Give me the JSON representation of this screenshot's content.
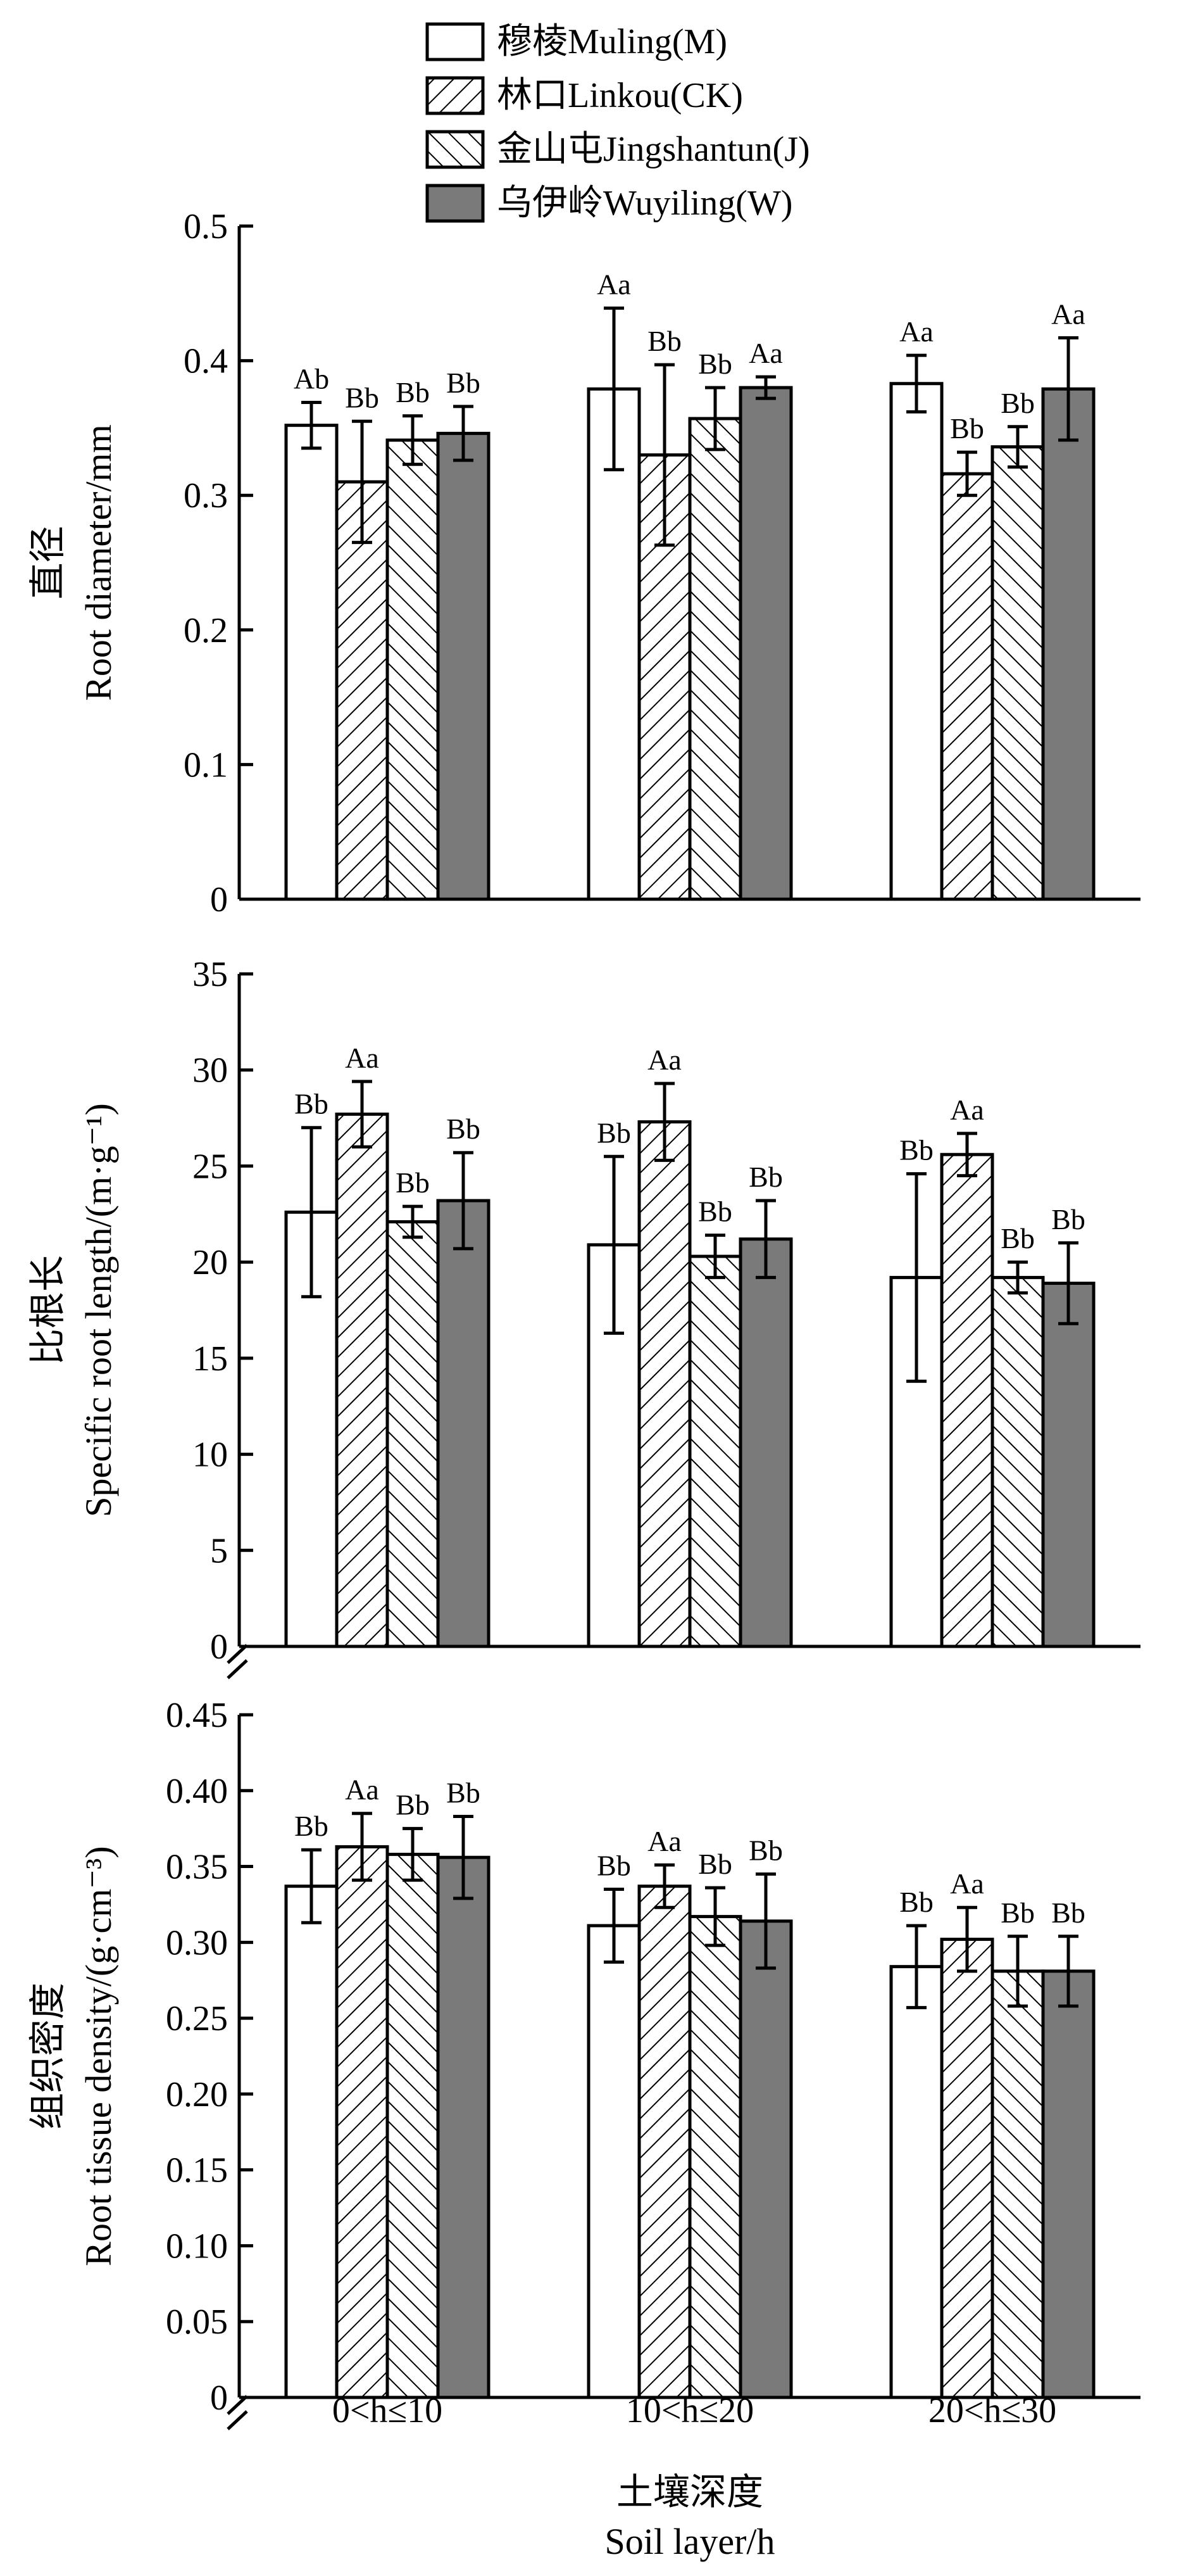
{
  "legend": {
    "position": "top-center",
    "entries": [
      {
        "label": "穆棱Muling(M)",
        "fill": "white"
      },
      {
        "label": "林口Linkou(CK)",
        "fill": "hatch-fwd"
      },
      {
        "label": "金山屯Jingshantun(J)",
        "fill": "hatch-back"
      },
      {
        "label": "乌伊岭Wuyiling(W)",
        "fill": "gray"
      }
    ]
  },
  "colors": {
    "bar_dark": "#7a7a7a",
    "stroke": "#000000",
    "background": "#ffffff"
  },
  "x_axis": {
    "tick_labels": [
      "0<h≤10",
      "10<h≤20",
      "20<h≤30"
    ],
    "label_cn": "土壤深度",
    "label_en": "Soil layer/h"
  },
  "chart_data": [
    {
      "type": "bar",
      "panel": "top",
      "ylabel_cn": "直径",
      "ylabel_en": "Root diameter/mm",
      "ylim": [
        0,
        0.5
      ],
      "yticks": [
        0,
        0.1,
        0.2,
        0.3,
        0.4,
        0.5
      ],
      "ytick_labels": [
        "0",
        "0.1",
        "0.2",
        "0.3",
        "0.4",
        "0.5"
      ],
      "axis_break_below": false,
      "categories": [
        "0<h≤10",
        "10<h≤20",
        "20<h≤30"
      ],
      "series": [
        {
          "name": "穆棱Muling(M)",
          "values": [
            0.352,
            0.379,
            0.383
          ],
          "errors": [
            0.017,
            0.06,
            0.021
          ],
          "labels": [
            "Ab",
            "Aa",
            "Aa"
          ]
        },
        {
          "name": "林口Linkou(CK)",
          "values": [
            0.31,
            0.33,
            0.316
          ],
          "errors": [
            0.045,
            0.067,
            0.016
          ],
          "labels": [
            "Bb",
            "Bb",
            "Bb"
          ]
        },
        {
          "name": "金山屯Jingshantun(J)",
          "values": [
            0.341,
            0.357,
            0.336
          ],
          "errors": [
            0.018,
            0.023,
            0.015
          ],
          "labels": [
            "Bb",
            "Bb",
            "Bb"
          ]
        },
        {
          "name": "乌伊岭Wuyiling(W)",
          "values": [
            0.346,
            0.38,
            0.379
          ],
          "errors": [
            0.02,
            0.008,
            0.038
          ],
          "labels": [
            "Bb",
            "Aa",
            "Aa"
          ]
        }
      ]
    },
    {
      "type": "bar",
      "panel": "middle",
      "ylabel_cn": "比根长",
      "ylabel_en": "Specific root length/(m·g⁻¹)",
      "ylim": [
        0,
        35
      ],
      "yticks": [
        0,
        5,
        10,
        15,
        20,
        25,
        30,
        35
      ],
      "ytick_labels": [
        "0",
        "5",
        "10",
        "15",
        "20",
        "25",
        "30",
        "35"
      ],
      "axis_break_below": true,
      "categories": [
        "0<h≤10",
        "10<h≤20",
        "20<h≤30"
      ],
      "series": [
        {
          "name": "穆棱Muling(M)",
          "values": [
            22.6,
            20.9,
            19.2
          ],
          "errors": [
            4.4,
            4.6,
            5.4
          ],
          "labels": [
            "Bb",
            "Bb",
            "Bb"
          ]
        },
        {
          "name": "林口Linkou(CK)",
          "values": [
            27.7,
            27.3,
            25.6
          ],
          "errors": [
            1.7,
            2.0,
            1.1
          ],
          "labels": [
            "Aa",
            "Aa",
            "Aa"
          ]
        },
        {
          "name": "金山屯Jingshantun(J)",
          "values": [
            22.1,
            20.3,
            19.2
          ],
          "errors": [
            0.8,
            1.1,
            0.8
          ],
          "labels": [
            "Bb",
            "Bb",
            "Bb"
          ]
        },
        {
          "name": "乌伊岭Wuyiling(W)",
          "values": [
            23.2,
            21.2,
            18.9
          ],
          "errors": [
            2.5,
            2.0,
            2.1
          ],
          "labels": [
            "Bb",
            "Bb",
            "Bb"
          ]
        }
      ]
    },
    {
      "type": "bar",
      "panel": "bottom",
      "ylabel_cn": "组织密度",
      "ylabel_en": "Root tissue density/(g·cm⁻³)",
      "ylim": [
        0,
        0.45
      ],
      "yticks": [
        0,
        0.05,
        0.1,
        0.15,
        0.2,
        0.25,
        0.3,
        0.35,
        0.4,
        0.45
      ],
      "ytick_labels": [
        "0",
        "0.05",
        "0.10",
        "0.15",
        "0.20",
        "0.25",
        "0.30",
        "0.35",
        "0.40",
        "0.45"
      ],
      "axis_break_below": true,
      "categories": [
        "0<h≤10",
        "10<h≤20",
        "20<h≤30"
      ],
      "series": [
        {
          "name": "穆棱Muling(M)",
          "values": [
            0.337,
            0.311,
            0.284
          ],
          "errors": [
            0.024,
            0.024,
            0.027
          ],
          "labels": [
            "Bb",
            "Bb",
            "Bb"
          ]
        },
        {
          "name": "林口Linkou(CK)",
          "values": [
            0.363,
            0.337,
            0.302
          ],
          "errors": [
            0.022,
            0.014,
            0.021
          ],
          "labels": [
            "Aa",
            "Aa",
            "Aa"
          ]
        },
        {
          "name": "金山屯Jingshantun(J)",
          "values": [
            0.358,
            0.317,
            0.281
          ],
          "errors": [
            0.017,
            0.019,
            0.023
          ],
          "labels": [
            "Bb",
            "Bb",
            "Bb"
          ]
        },
        {
          "name": "乌伊岭Wuyiling(W)",
          "values": [
            0.356,
            0.314,
            0.281
          ],
          "errors": [
            0.027,
            0.031,
            0.023
          ],
          "labels": [
            "Bb",
            "Bb",
            "Bb"
          ]
        }
      ]
    }
  ]
}
